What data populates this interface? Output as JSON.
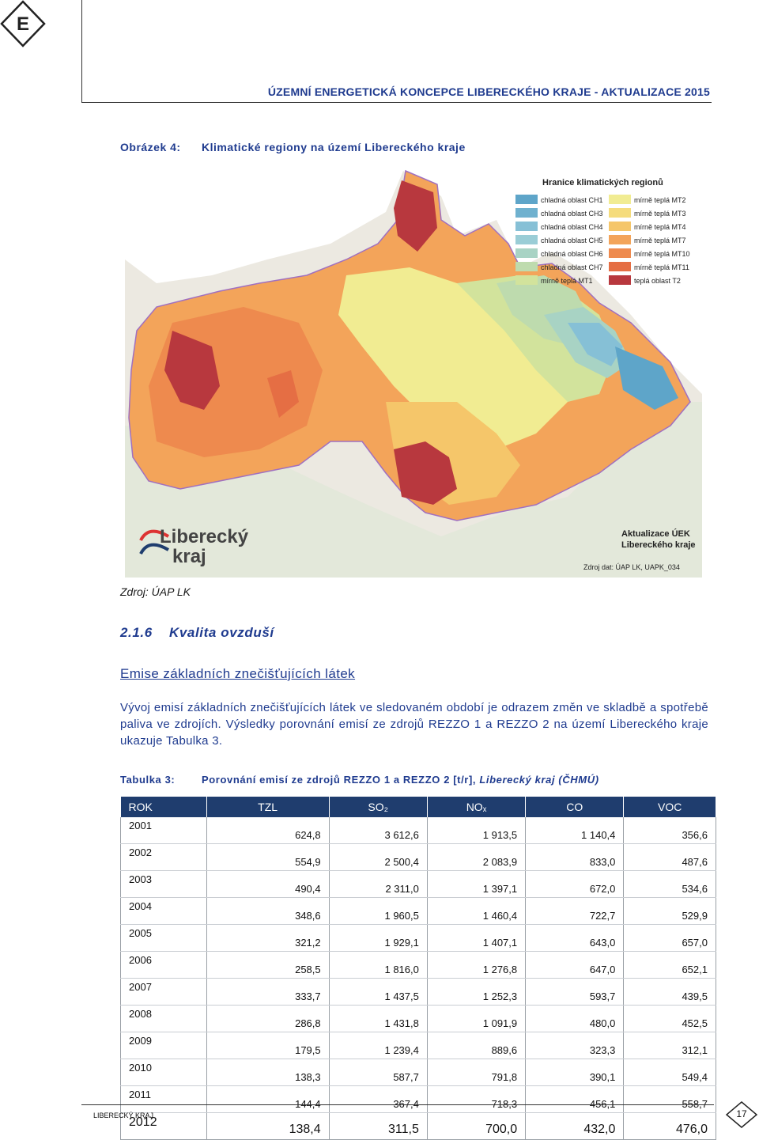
{
  "header": {
    "title": "ÚZEMNÍ ENERGETICKÁ KONCEPCE LIBERECKÉHO KRAJE - AKTUALIZACE 2015",
    "logo_letter": "E"
  },
  "figure": {
    "label": "Obrázek 4:",
    "title": "Klimatické regiony na území Libereckého kraje",
    "legend_title": "Hranice klimatických regionů",
    "legend": [
      {
        "label": "chladná oblast CH1",
        "color": "#5ea5c9"
      },
      {
        "label": "chladná oblast CH3",
        "color": "#6fb1cf"
      },
      {
        "label": "chladná oblast CH4",
        "color": "#86c0d6"
      },
      {
        "label": "chladná oblast CH5",
        "color": "#9acdd6"
      },
      {
        "label": "chladná oblast CH6",
        "color": "#a8d3c4"
      },
      {
        "label": "chladná oblast CH7",
        "color": "#bedbae"
      },
      {
        "label": "mírně teplá MT1",
        "color": "#d2e39c"
      },
      {
        "label": "mírně teplá MT2",
        "color": "#f1ec92"
      },
      {
        "label": "mírně teplá MT3",
        "color": "#f5dc7c"
      },
      {
        "label": "mírně teplá MT4",
        "color": "#f5c66a"
      },
      {
        "label": "mírně teplá MT7",
        "color": "#f3a45a"
      },
      {
        "label": "mírně teplá MT10",
        "color": "#ee8a4e"
      },
      {
        "label": "mírně teplá MT11",
        "color": "#e56e44"
      },
      {
        "label": "teplá oblast T2",
        "color": "#b8383e"
      }
    ],
    "brand_line1": "Liberecký",
    "brand_line2": "kraj",
    "update_line1": "Aktualizace ÚEK",
    "update_line2": "Libereckého kraje",
    "data_source": "Zdroj dat: ÚAP LK, UAPK_034",
    "source": "Zdroj: ÚAP LK"
  },
  "section": {
    "number": "2.1.6",
    "title": "Kvalita ovzduší"
  },
  "subheading": "Emise základních znečišťujících látek",
  "paragraph": "Vývoj emisí základních znečišťujících látek ve sledovaném období je odrazem změn ve skladbě a spotřebě paliva ve zdrojích. Výsledky porovnání emisí ze zdrojů REZZO 1 a REZZO 2 na území Libereckého kraje ukazuje Tabulka 3.",
  "table": {
    "label": "Tabulka 3:",
    "caption_main": "Porovnání emisí ze zdrojů REZZO 1 a REZZO 2 [t/r], ",
    "caption_italic": "Liberecký kraj (ČHMÚ)",
    "columns": [
      "ROK",
      "TZL",
      "SO₂",
      "NOₓ",
      "CO",
      "VOC"
    ],
    "rows": [
      [
        "2001",
        "624,8",
        "3 612,6",
        "1 913,5",
        "1 140,4",
        "356,6"
      ],
      [
        "2002",
        "554,9",
        "2 500,4",
        "2 083,9",
        "833,0",
        "487,6"
      ],
      [
        "2003",
        "490,4",
        "2 311,0",
        "1 397,1",
        "672,0",
        "534,6"
      ],
      [
        "2004",
        "348,6",
        "1 960,5",
        "1 460,4",
        "722,7",
        "529,9"
      ],
      [
        "2005",
        "321,2",
        "1 929,1",
        "1 407,1",
        "643,0",
        "657,0"
      ],
      [
        "2006",
        "258,5",
        "1 816,0",
        "1 276,8",
        "647,0",
        "652,1"
      ],
      [
        "2007",
        "333,7",
        "1 437,5",
        "1 252,3",
        "593,7",
        "439,5"
      ],
      [
        "2008",
        "286,8",
        "1 431,8",
        "1 091,9",
        "480,0",
        "452,5"
      ],
      [
        "2009",
        "179,5",
        "1 239,4",
        "889,6",
        "323,3",
        "312,1"
      ],
      [
        "2010",
        "138,3",
        "587,7",
        "791,8",
        "390,1",
        "549,4"
      ],
      [
        "2011",
        "144,4",
        "367,4",
        "718,3",
        "456,1",
        "558,7"
      ],
      [
        "2012",
        "138,4",
        "311,5",
        "700,0",
        "432,0",
        "476,0"
      ]
    ]
  },
  "footer": {
    "left": "LIBERECKÝ KRAJ",
    "page": "17"
  }
}
